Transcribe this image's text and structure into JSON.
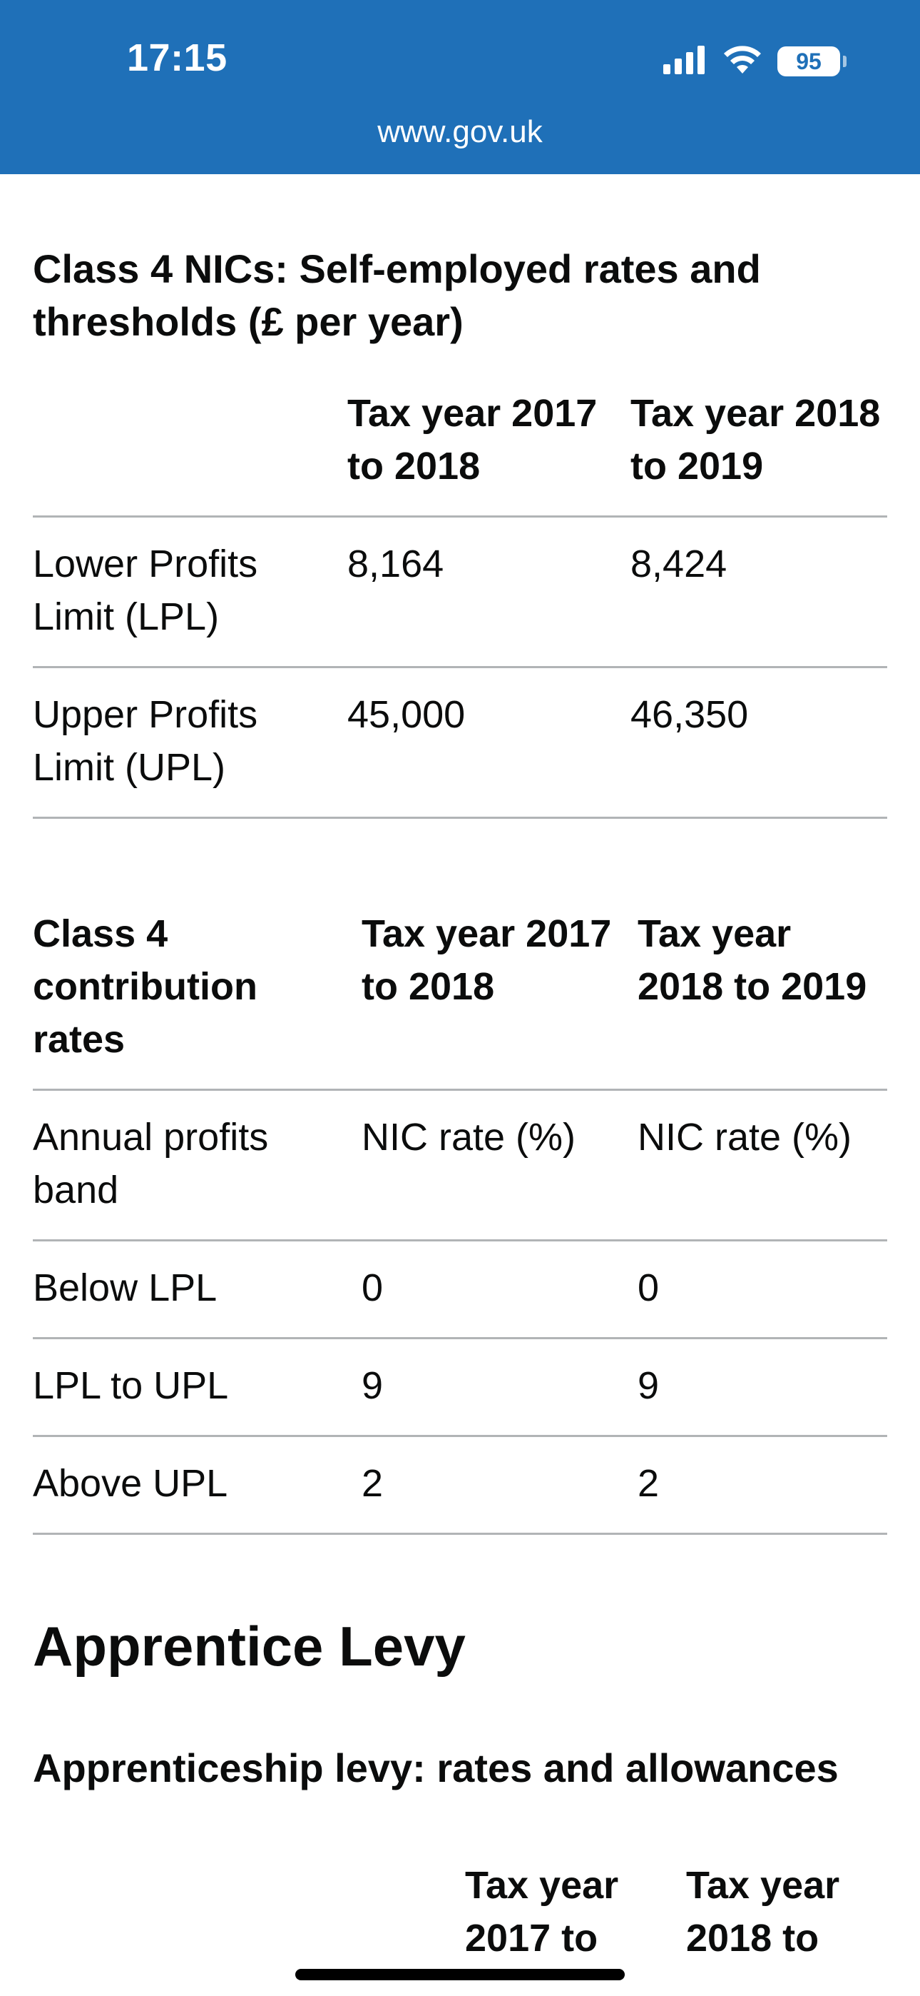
{
  "status_bar": {
    "time": "17:15",
    "battery": "95",
    "url": "www.gov.uk"
  },
  "section_class4": {
    "title": "Class 4 NICs: Self-employed rates and thresholds (£ per year)",
    "thresholds_table": {
      "headers": [
        "",
        "Tax year 2017 to 2018",
        "Tax year 2018 to 2019"
      ],
      "rows": [
        [
          "Lower Profits Limit (LPL)",
          "8,164",
          "8,424"
        ],
        [
          "Upper Profits Limit (UPL)",
          "45,000",
          "46,350"
        ]
      ]
    },
    "rates_table": {
      "headers": [
        "Class 4 contribution rates",
        "Tax year 2017 to 2018",
        "Tax year 2018 to 2019"
      ],
      "rows": [
        [
          "Annual profits band",
          "NIC rate (%)",
          "NIC rate (%)"
        ],
        [
          "Below LPL",
          "0",
          "0"
        ],
        [
          "LPL to UPL",
          "9",
          "9"
        ],
        [
          "Above UPL",
          "2",
          "2"
        ]
      ]
    }
  },
  "section_levy": {
    "heading": "Apprentice Levy",
    "subheading": "Apprenticeship levy: rates and allowances",
    "table_headers": [
      "",
      "Tax year 2017 to",
      "Tax year 2018 to"
    ]
  }
}
